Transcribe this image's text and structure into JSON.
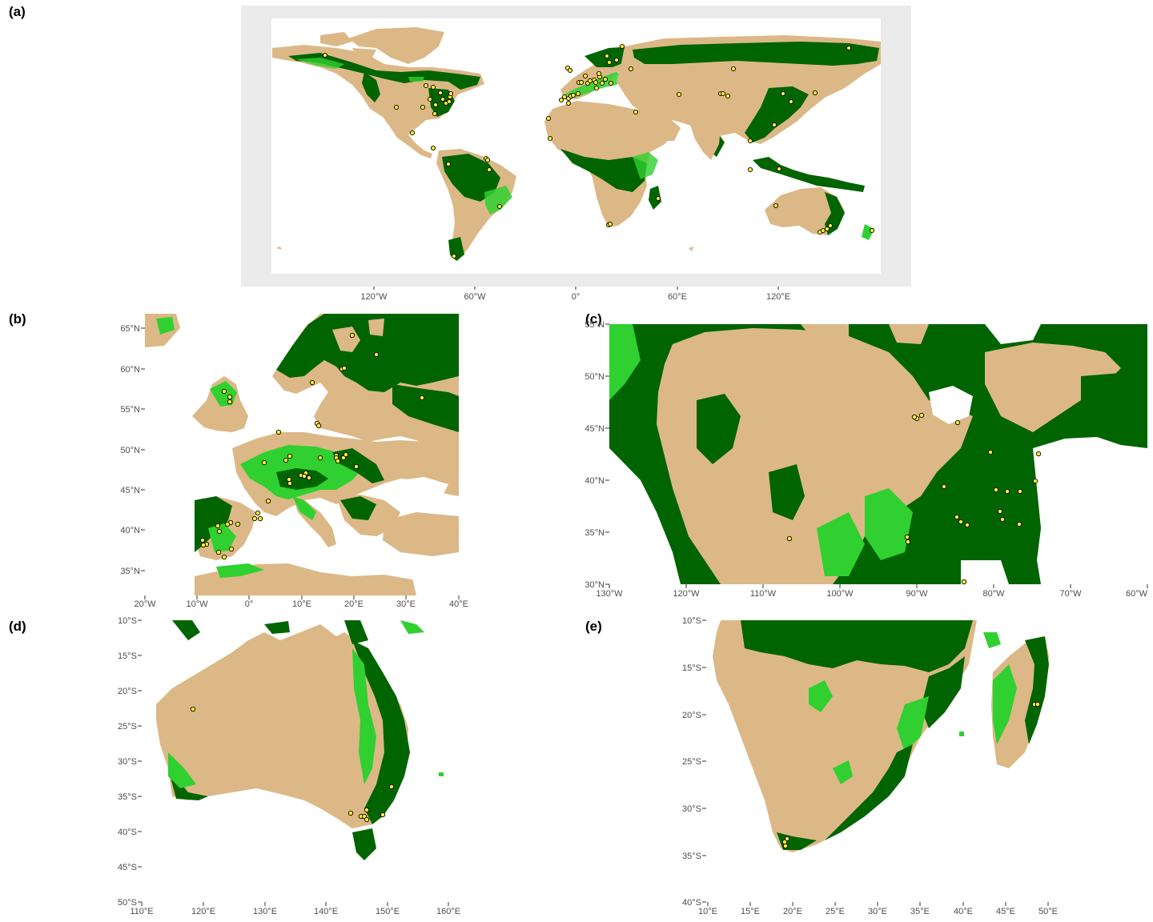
{
  "panels": {
    "a": {
      "letter": "(a)",
      "x_ticks": [
        "120°W",
        "60°W",
        "0°",
        "60°E",
        "120°E"
      ]
    },
    "b": {
      "letter": "(b)",
      "x_ticks": [
        "20°W",
        "10°W",
        "0°",
        "10°E",
        "20°E",
        "30°E",
        "40°E"
      ],
      "y_ticks": [
        "65°N",
        "60°N",
        "55°N",
        "50°N",
        "45°N",
        "40°N",
        "35°N"
      ]
    },
    "c": {
      "letter": "(c)",
      "x_ticks": [
        "130°W",
        "120°W",
        "110°W",
        "100°W",
        "90°W",
        "80°W",
        "70°W",
        "60°W"
      ],
      "y_ticks": [
        "55°N",
        "50°N",
        "45°N",
        "40°N",
        "35°N",
        "30°N"
      ]
    },
    "d": {
      "letter": "(d)",
      "x_ticks": [
        "110°E",
        "120°E",
        "130°E",
        "140°E",
        "150°E",
        "160°E"
      ],
      "y_ticks": [
        "10°S",
        "15°S",
        "20°S",
        "25°S",
        "30°S",
        "35°S",
        "40°S",
        "45°S",
        "50°S"
      ]
    },
    "e": {
      "letter": "(e)",
      "x_ticks": [
        "10°E",
        "15°E",
        "20°E",
        "25°E",
        "30°E",
        "35°E",
        "40°E",
        "45°E",
        "50°E"
      ],
      "y_ticks": [
        "10°S",
        "15°S",
        "20°S",
        "25°S",
        "30°S",
        "35°S",
        "40°S"
      ]
    }
  },
  "colors": {
    "land": "#dcb887",
    "forest_dark": "#006400",
    "forest_light": "#2fd02f",
    "water": "#ffffff",
    "panel_bg": "#ebebeb",
    "point_fill": "#ffee33",
    "point_stroke": "#000000"
  }
}
